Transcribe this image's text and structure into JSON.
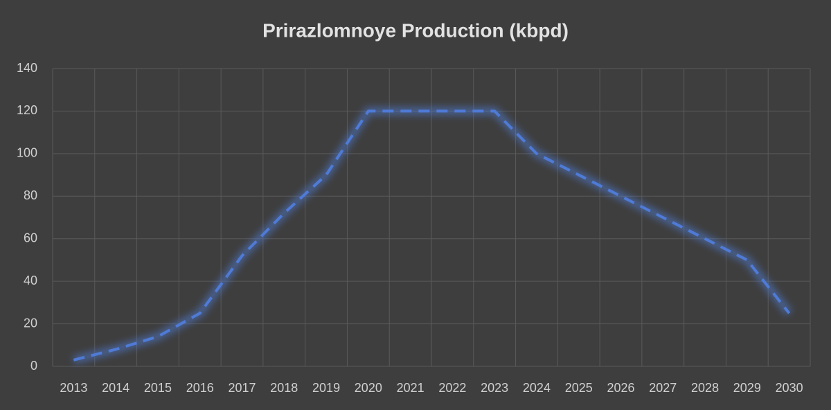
{
  "chart_data": {
    "type": "line",
    "title": "Prirazlomnoye Production (kbpd)",
    "categories": [
      "2013",
      "2014",
      "2015",
      "2016",
      "2017",
      "2018",
      "2019",
      "2020",
      "2021",
      "2022",
      "2023",
      "2024",
      "2025",
      "2026",
      "2027",
      "2028",
      "2029",
      "2030"
    ],
    "series": [
      {
        "name": "Prirazlomnoye",
        "color": "#4f7bd6",
        "values": [
          3,
          8,
          14,
          25,
          52,
          72,
          90,
          120,
          120,
          120,
          120,
          100,
          90,
          80,
          70,
          60,
          50,
          25
        ]
      }
    ],
    "ylim": [
      0,
      140
    ],
    "yticks": [
      0,
      20,
      40,
      60,
      80,
      100,
      120,
      140
    ],
    "grid": true
  }
}
